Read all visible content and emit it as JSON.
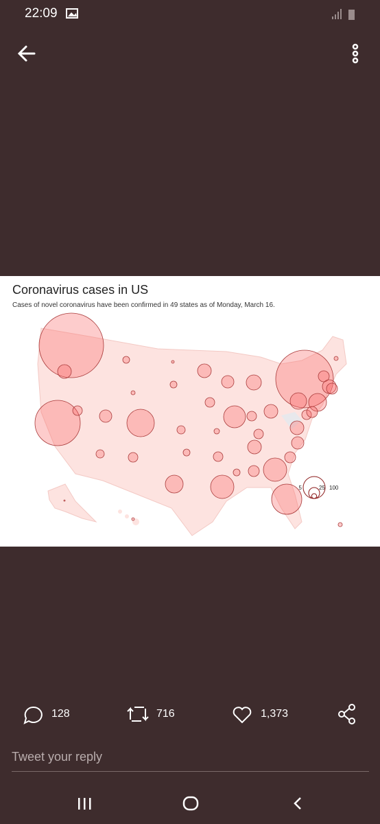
{
  "status_bar": {
    "time": "22:09"
  },
  "image": {
    "title": "Coronavirus cases in US",
    "subtitle": "Cases of novel coronavirus have been confirmed in 49 states as of Monday, March 16.",
    "legend": [
      5,
      25,
      100
    ]
  },
  "actions": {
    "replies": "128",
    "retweets": "716",
    "likes": "1,373"
  },
  "reply_placeholder": "Tweet your reply"
}
